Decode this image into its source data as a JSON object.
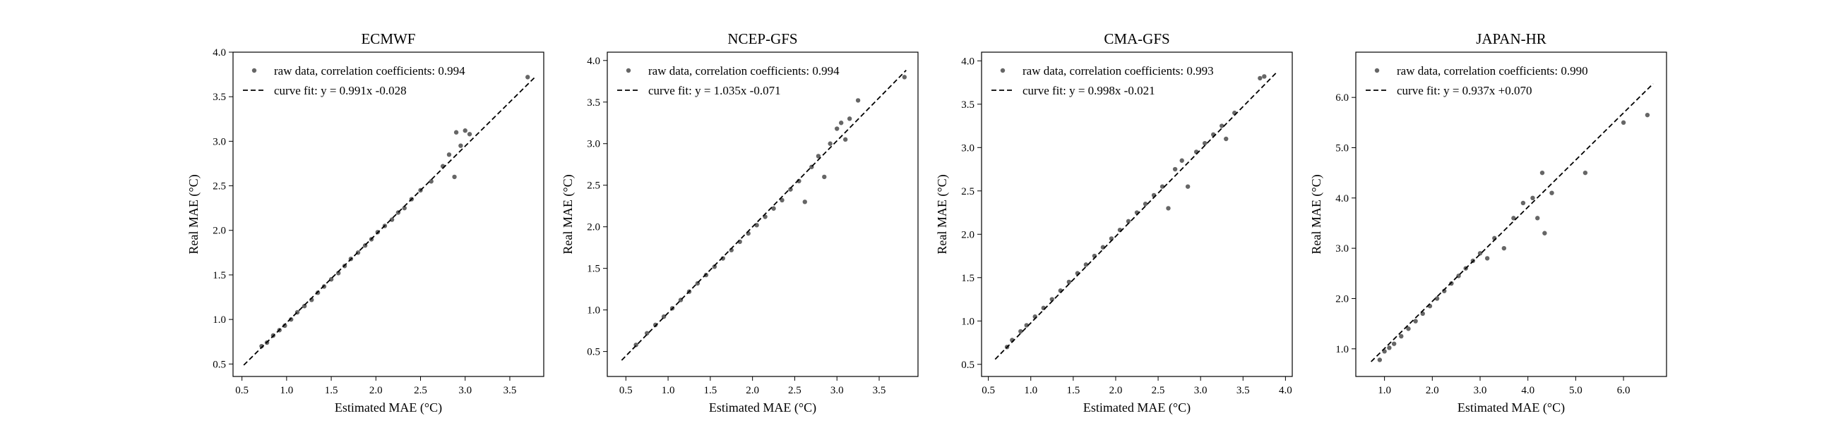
{
  "chart_data": [
    {
      "type": "scatter",
      "title": "ECMWF",
      "xlabel": "Estimated MAE (°C)",
      "ylabel": "Real MAE (°C)",
      "xlim": [
        0.4,
        3.88
      ],
      "ylim": [
        0.36,
        4.0
      ],
      "xticks": [
        "0.5",
        "1.0",
        "1.5",
        "2.0",
        "2.5",
        "3.0",
        "3.5"
      ],
      "yticks": [
        "0.5",
        "1.0",
        "1.5",
        "2.0",
        "2.5",
        "3.0",
        "3.5",
        "4.0"
      ],
      "series": [
        {
          "name": "raw data, correlation coefficients: 0.994",
          "kind": "points",
          "color": "#666666",
          "x": [
            0.72,
            0.78,
            0.85,
            0.92,
            0.98,
            1.05,
            1.12,
            1.2,
            1.28,
            1.35,
            1.42,
            1.5,
            1.58,
            1.65,
            1.72,
            1.8,
            1.88,
            1.95,
            2.02,
            2.1,
            2.18,
            2.25,
            2.32,
            2.4,
            2.5,
            2.62,
            2.75,
            2.82,
            2.88,
            2.9,
            2.95,
            3.0,
            3.05,
            3.7
          ],
          "y": [
            0.7,
            0.74,
            0.82,
            0.88,
            0.93,
            1.0,
            1.08,
            1.15,
            1.22,
            1.3,
            1.37,
            1.45,
            1.52,
            1.6,
            1.68,
            1.75,
            1.83,
            1.9,
            1.98,
            2.05,
            2.12,
            2.2,
            2.25,
            2.35,
            2.45,
            2.55,
            2.72,
            2.85,
            2.6,
            3.1,
            2.95,
            3.12,
            3.08,
            3.72
          ]
        },
        {
          "name": "curve fit: y = 0.991x -0.028",
          "kind": "line",
          "slope": 0.991,
          "intercept": -0.028,
          "x_range": [
            0.52,
            3.78
          ]
        }
      ]
    },
    {
      "type": "scatter",
      "title": "NCEP-GFS",
      "xlabel": "Estimated MAE (°C)",
      "ylabel": "Real MAE (°C)",
      "xlim": [
        0.28,
        3.96
      ],
      "ylim": [
        0.2,
        4.1
      ],
      "xticks": [
        "0.5",
        "1.0",
        "1.5",
        "2.0",
        "2.5",
        "3.0",
        "3.5"
      ],
      "yticks": [
        "0.5",
        "1.0",
        "1.5",
        "2.0",
        "2.5",
        "3.0",
        "3.5",
        "4.0"
      ],
      "series": [
        {
          "name": "raw data, correlation coefficients: 0.994",
          "kind": "points",
          "color": "#666666",
          "x": [
            0.62,
            0.75,
            0.85,
            0.95,
            1.05,
            1.15,
            1.25,
            1.35,
            1.45,
            1.55,
            1.65,
            1.75,
            1.85,
            1.95,
            2.05,
            2.15,
            2.25,
            2.35,
            2.45,
            2.55,
            2.62,
            2.7,
            2.78,
            2.85,
            2.92,
            3.0,
            3.05,
            3.1,
            3.15,
            3.25,
            3.8
          ],
          "y": [
            0.58,
            0.72,
            0.82,
            0.92,
            1.02,
            1.12,
            1.22,
            1.32,
            1.42,
            1.52,
            1.62,
            1.72,
            1.82,
            1.92,
            2.02,
            2.12,
            2.22,
            2.32,
            2.45,
            2.55,
            2.3,
            2.72,
            2.85,
            2.6,
            3.0,
            3.18,
            3.25,
            3.05,
            3.3,
            3.52,
            3.8
          ]
        },
        {
          "name": "curve fit: y = 1.035x -0.071",
          "kind": "line",
          "slope": 1.035,
          "intercept": -0.071,
          "x_range": [
            0.45,
            3.82
          ]
        }
      ]
    },
    {
      "type": "scatter",
      "title": "CMA-GFS",
      "xlabel": "Estimated MAE (°C)",
      "ylabel": "Real MAE (°C)",
      "xlim": [
        0.42,
        4.08
      ],
      "ylim": [
        0.36,
        4.1
      ],
      "xticks": [
        "0.5",
        "1.0",
        "1.5",
        "2.0",
        "2.5",
        "3.0",
        "3.5",
        "4.0"
      ],
      "yticks": [
        "0.5",
        "1.0",
        "1.5",
        "2.0",
        "2.5",
        "3.0",
        "3.5",
        "4.0"
      ],
      "series": [
        {
          "name": "raw data, correlation coefficients: 0.993",
          "kind": "points",
          "color": "#666666",
          "x": [
            0.72,
            0.78,
            0.88,
            0.95,
            1.05,
            1.15,
            1.25,
            1.35,
            1.45,
            1.55,
            1.65,
            1.75,
            1.85,
            1.95,
            2.05,
            2.15,
            2.25,
            2.35,
            2.45,
            2.55,
            2.62,
            2.7,
            2.78,
            2.85,
            2.95,
            3.05,
            3.15,
            3.25,
            3.3,
            3.4,
            3.7,
            3.75
          ],
          "y": [
            0.7,
            0.78,
            0.88,
            0.95,
            1.05,
            1.15,
            1.25,
            1.35,
            1.45,
            1.55,
            1.65,
            1.75,
            1.85,
            1.95,
            2.05,
            2.15,
            2.25,
            2.35,
            2.45,
            2.55,
            2.3,
            2.75,
            2.85,
            2.55,
            2.95,
            3.05,
            3.15,
            3.25,
            3.1,
            3.4,
            3.8,
            3.82
          ]
        },
        {
          "name": "curve fit: y = 0.998x -0.021",
          "kind": "line",
          "slope": 0.998,
          "intercept": -0.021,
          "x_range": [
            0.58,
            3.9
          ]
        }
      ]
    },
    {
      "type": "scatter",
      "title": "JAPAN-HR",
      "xlabel": "Estimated MAE (°C)",
      "ylabel": "Real MAE (°C)",
      "xlim": [
        0.4,
        6.9
      ],
      "ylim": [
        0.45,
        6.9
      ],
      "xticks": [
        "1.0",
        "2.0",
        "3.0",
        "4.0",
        "5.0",
        "6.0"
      ],
      "yticks": [
        "1.0",
        "2.0",
        "3.0",
        "4.0",
        "5.0",
        "6.0"
      ],
      "series": [
        {
          "name": "raw data, correlation coefficients: 0.990",
          "kind": "points",
          "color": "#666666",
          "x": [
            0.9,
            1.0,
            1.1,
            1.2,
            1.35,
            1.5,
            1.65,
            1.8,
            1.95,
            2.1,
            2.25,
            2.4,
            2.55,
            2.7,
            2.85,
            3.0,
            3.15,
            3.3,
            3.5,
            3.7,
            3.9,
            4.1,
            4.2,
            4.3,
            4.35,
            4.5,
            5.2,
            6.0,
            6.5
          ],
          "y": [
            0.78,
            0.95,
            1.02,
            1.1,
            1.25,
            1.4,
            1.55,
            1.7,
            1.85,
            2.0,
            2.15,
            2.3,
            2.45,
            2.6,
            2.75,
            2.9,
            2.8,
            3.2,
            3.0,
            3.6,
            3.9,
            4.0,
            3.6,
            4.5,
            3.3,
            4.1,
            4.5,
            5.5,
            5.65
          ]
        },
        {
          "name": "curve fit: y = 0.937x +0.070",
          "kind": "line",
          "slope": 0.937,
          "intercept": 0.07,
          "x_range": [
            0.72,
            6.62
          ]
        }
      ]
    }
  ]
}
